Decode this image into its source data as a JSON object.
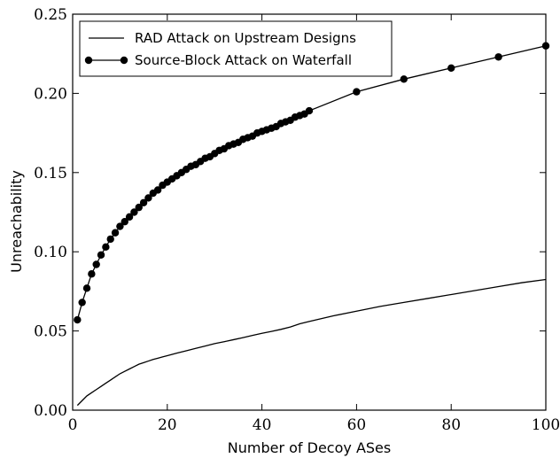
{
  "chart_data": {
    "type": "line",
    "title": "",
    "xlabel": "Number of Decoy ASes",
    "ylabel": "Unreachability",
    "xlim": [
      0,
      100
    ],
    "ylim": [
      0,
      0.25
    ],
    "x_ticks": [
      0,
      20,
      40,
      60,
      80,
      100
    ],
    "y_ticks": [
      0.0,
      0.05,
      0.1,
      0.15,
      0.2,
      0.25
    ],
    "x_tick_labels": [
      "0",
      "20",
      "40",
      "60",
      "80",
      "100"
    ],
    "y_tick_labels": [
      "0.00",
      "0.05",
      "0.10",
      "0.15",
      "0.20",
      "0.25"
    ],
    "grid": false,
    "legend_position": "top-left",
    "series": [
      {
        "name": "RAD Attack on Upstream Designs",
        "marker": "none",
        "color": "#000000",
        "x": [
          1,
          2,
          3,
          4,
          5,
          6,
          7,
          8,
          9,
          10,
          11,
          12,
          13,
          14,
          15,
          16,
          17,
          18,
          19,
          20,
          22,
          24,
          26,
          28,
          30,
          32,
          34,
          36,
          38,
          40,
          42,
          44,
          46,
          48,
          50,
          55,
          60,
          65,
          70,
          75,
          80,
          85,
          90,
          95,
          100
        ],
        "y": [
          0.003,
          0.006,
          0.009,
          0.011,
          0.013,
          0.015,
          0.017,
          0.019,
          0.021,
          0.023,
          0.0245,
          0.026,
          0.0275,
          0.029,
          0.03,
          0.031,
          0.032,
          0.0328,
          0.0336,
          0.0344,
          0.036,
          0.0375,
          0.039,
          0.0405,
          0.042,
          0.0432,
          0.0445,
          0.0458,
          0.0472,
          0.0485,
          0.0497,
          0.051,
          0.0525,
          0.0545,
          0.056,
          0.0595,
          0.0625,
          0.0655,
          0.068,
          0.0705,
          0.073,
          0.0755,
          0.078,
          0.0805,
          0.0825
        ]
      },
      {
        "name": "Source-Block Attack on Waterfall",
        "marker": "circle",
        "color": "#000000",
        "x": [
          1,
          2,
          3,
          4,
          5,
          6,
          7,
          8,
          9,
          10,
          11,
          12,
          13,
          14,
          15,
          16,
          17,
          18,
          19,
          20,
          21,
          22,
          23,
          24,
          25,
          26,
          27,
          28,
          29,
          30,
          31,
          32,
          33,
          34,
          35,
          36,
          37,
          38,
          39,
          40,
          41,
          42,
          43,
          44,
          45,
          46,
          47,
          48,
          49,
          50,
          60,
          70,
          80,
          90,
          100
        ],
        "y": [
          0.057,
          0.068,
          0.077,
          0.086,
          0.092,
          0.098,
          0.103,
          0.108,
          0.112,
          0.116,
          0.119,
          0.122,
          0.125,
          0.128,
          0.131,
          0.134,
          0.137,
          0.139,
          0.142,
          0.144,
          0.146,
          0.148,
          0.15,
          0.152,
          0.154,
          0.155,
          0.157,
          0.159,
          0.16,
          0.162,
          0.164,
          0.165,
          0.167,
          0.168,
          0.169,
          0.171,
          0.172,
          0.173,
          0.175,
          0.176,
          0.177,
          0.178,
          0.179,
          0.181,
          0.182,
          0.183,
          0.185,
          0.186,
          0.187,
          0.189,
          0.201,
          0.209,
          0.216,
          0.223,
          0.23
        ]
      }
    ]
  }
}
